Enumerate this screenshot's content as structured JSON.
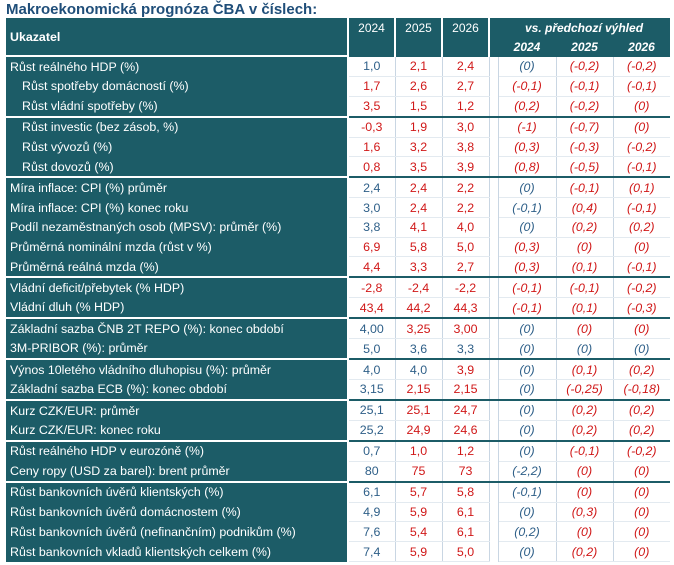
{
  "title": "Makroekonomická prognóza ČBA v číslech:",
  "header": {
    "indicator": "Ukazatel",
    "years": [
      "2024",
      "2025",
      "2026"
    ],
    "vs_label": "vs. předchozí výhled",
    "vs_years": [
      "2024",
      "2025",
      "2026"
    ]
  },
  "colors": {
    "header_bg": "#1c5c67",
    "title": "#1f4e79",
    "positive": "#2e5f88",
    "negative": "#d01818"
  },
  "rows": [
    {
      "label": "Růst reálného HDP (%)",
      "indent": false,
      "sep": true,
      "values": [
        "1,0",
        "2,1",
        "2,4"
      ],
      "vc": [
        "b",
        "r",
        "r"
      ],
      "diffs": [
        "(0)",
        "(-0,2)",
        "(-0,2)"
      ],
      "dc": [
        "b",
        "r",
        "r"
      ]
    },
    {
      "label": "Růst spotřeby domácností (%)",
      "indent": true,
      "sep": false,
      "values": [
        "1,7",
        "2,6",
        "2,7"
      ],
      "vc": [
        "r",
        "r",
        "r"
      ],
      "diffs": [
        "(-0,1)",
        "(-0,1)",
        "(-0,1)"
      ],
      "dc": [
        "r",
        "r",
        "r"
      ]
    },
    {
      "label": "Růst vládní spotřeby (%)",
      "indent": true,
      "sep": false,
      "values": [
        "3,5",
        "1,5",
        "1,2"
      ],
      "vc": [
        "r",
        "r",
        "r"
      ],
      "diffs": [
        "(0,2)",
        "(-0,2)",
        "(0)"
      ],
      "dc": [
        "r",
        "r",
        "r"
      ]
    },
    {
      "label": "Růst investic (bez zásob, %)",
      "indent": true,
      "sep": true,
      "values": [
        "-0,3",
        "1,9",
        "3,0"
      ],
      "vc": [
        "r",
        "r",
        "r"
      ],
      "diffs": [
        "(-1)",
        "(-0,7)",
        "(0)"
      ],
      "dc": [
        "r",
        "r",
        "r"
      ]
    },
    {
      "label": "Růst vývozů (%)",
      "indent": true,
      "sep": false,
      "values": [
        "1,6",
        "3,2",
        "3,8"
      ],
      "vc": [
        "r",
        "r",
        "r"
      ],
      "diffs": [
        "(0,3)",
        "(-0,3)",
        "(-0,2)"
      ],
      "dc": [
        "r",
        "r",
        "r"
      ]
    },
    {
      "label": "Růst dovozů (%)",
      "indent": true,
      "sep": false,
      "values": [
        "0,8",
        "3,5",
        "3,9"
      ],
      "vc": [
        "r",
        "r",
        "r"
      ],
      "diffs": [
        "(0,8)",
        "(-0,5)",
        "(-0,1)"
      ],
      "dc": [
        "r",
        "r",
        "r"
      ]
    },
    {
      "label": "Míra inflace: CPI (%) průměr",
      "indent": false,
      "sep": true,
      "values": [
        "2,4",
        "2,4",
        "2,2"
      ],
      "vc": [
        "b",
        "r",
        "r"
      ],
      "diffs": [
        "(0)",
        "(-0,1)",
        "(0,1)"
      ],
      "dc": [
        "b",
        "r",
        "r"
      ]
    },
    {
      "label": "Míra inflace: CPI (%) konec roku",
      "indent": false,
      "sep": false,
      "values": [
        "3,0",
        "2,4",
        "2,2"
      ],
      "vc": [
        "b",
        "r",
        "r"
      ],
      "diffs": [
        "(-0,1)",
        "(0,4)",
        "(-0,1)"
      ],
      "dc": [
        "b",
        "r",
        "r"
      ]
    },
    {
      "label": "Podíl nezaměstnaných osob (MPSV): průměr (%)",
      "indent": false,
      "sep": false,
      "values": [
        "3,8",
        "4,1",
        "4,0"
      ],
      "vc": [
        "b",
        "r",
        "r"
      ],
      "diffs": [
        "(0)",
        "(0,2)",
        "(0,2)"
      ],
      "dc": [
        "b",
        "r",
        "r"
      ]
    },
    {
      "label": "Průměrná nominální mzda (růst v %)",
      "indent": false,
      "sep": false,
      "values": [
        "6,9",
        "5,8",
        "5,0"
      ],
      "vc": [
        "r",
        "r",
        "r"
      ],
      "diffs": [
        "(0,3)",
        "(0)",
        "(0)"
      ],
      "dc": [
        "r",
        "r",
        "r"
      ]
    },
    {
      "label": "Průměrná reálná mzda (%)",
      "indent": false,
      "sep": false,
      "values": [
        "4,4",
        "3,3",
        "2,7"
      ],
      "vc": [
        "r",
        "r",
        "r"
      ],
      "diffs": [
        "(0,3)",
        "(0,1)",
        "(-0,1)"
      ],
      "dc": [
        "r",
        "r",
        "r"
      ]
    },
    {
      "label": "Vládní deficit/přebytek (% HDP)",
      "indent": false,
      "sep": true,
      "values": [
        "-2,8",
        "-2,4",
        "-2,2"
      ],
      "vc": [
        "r",
        "r",
        "r"
      ],
      "diffs": [
        "(-0,1)",
        "(-0,1)",
        "(-0,2)"
      ],
      "dc": [
        "r",
        "r",
        "r"
      ]
    },
    {
      "label": "Vládní dluh (% HDP)",
      "indent": false,
      "sep": false,
      "values": [
        "43,4",
        "44,2",
        "44,3"
      ],
      "vc": [
        "r",
        "r",
        "r"
      ],
      "diffs": [
        "(-0,1)",
        "(0,1)",
        "(-0,3)"
      ],
      "dc": [
        "r",
        "r",
        "r"
      ]
    },
    {
      "label": "Základní sazba ČNB 2T REPO (%): konec období",
      "indent": false,
      "sep": true,
      "values": [
        "4,00",
        "3,25",
        "3,00"
      ],
      "vc": [
        "b",
        "r",
        "r"
      ],
      "diffs": [
        "(0)",
        "(0)",
        "(0)"
      ],
      "dc": [
        "b",
        "r",
        "r"
      ]
    },
    {
      "label": "3M-PRIBOR (%): průměr",
      "indent": false,
      "sep": false,
      "values": [
        "5,0",
        "3,6",
        "3,3"
      ],
      "vc": [
        "b",
        "b",
        "b"
      ],
      "diffs": [
        "(0)",
        "(0)",
        "(0)"
      ],
      "dc": [
        "b",
        "b",
        "b"
      ]
    },
    {
      "label": "Výnos 10letého vládního dluhopisu (%): průměr",
      "indent": false,
      "sep": true,
      "values": [
        "4,0",
        "4,0",
        "3,9"
      ],
      "vc": [
        "b",
        "b",
        "r"
      ],
      "diffs": [
        "(0)",
        "(0,1)",
        "(0,2)"
      ],
      "dc": [
        "b",
        "r",
        "r"
      ]
    },
    {
      "label": "Základní sazba ECB (%): konec období",
      "indent": false,
      "sep": false,
      "values": [
        "3,15",
        "2,15",
        "2,15"
      ],
      "vc": [
        "b",
        "r",
        "r"
      ],
      "diffs": [
        "(0)",
        "(-0,25)",
        "(-0,18)"
      ],
      "dc": [
        "b",
        "r",
        "r"
      ]
    },
    {
      "label": "Kurz CZK/EUR: průměr",
      "indent": false,
      "sep": true,
      "values": [
        "25,1",
        "25,1",
        "24,7"
      ],
      "vc": [
        "b",
        "r",
        "r"
      ],
      "diffs": [
        "(0)",
        "(0,2)",
        "(0,2)"
      ],
      "dc": [
        "b",
        "r",
        "r"
      ]
    },
    {
      "label": "Kurz CZK/EUR: konec roku",
      "indent": false,
      "sep": false,
      "values": [
        "25,2",
        "24,9",
        "24,6"
      ],
      "vc": [
        "b",
        "r",
        "r"
      ],
      "diffs": [
        "(0)",
        "(0,2)",
        "(0,2)"
      ],
      "dc": [
        "b",
        "r",
        "r"
      ]
    },
    {
      "label": "Růst reálného HDP v eurozóně (%)",
      "indent": false,
      "sep": true,
      "values": [
        "0,7",
        "1,0",
        "1,2"
      ],
      "vc": [
        "b",
        "r",
        "r"
      ],
      "diffs": [
        "(0)",
        "(-0,1)",
        "(-0,2)"
      ],
      "dc": [
        "b",
        "r",
        "r"
      ]
    },
    {
      "label": "Ceny ropy (USD za barel): brent průměr",
      "indent": false,
      "sep": false,
      "values": [
        "80",
        "75",
        "73"
      ],
      "vc": [
        "b",
        "r",
        "r"
      ],
      "diffs": [
        "(-2,2)",
        "(0)",
        "(0)"
      ],
      "dc": [
        "b",
        "r",
        "r"
      ]
    },
    {
      "label": "Růst bankovních úvěrů klientských (%)",
      "indent": false,
      "sep": true,
      "values": [
        "6,1",
        "5,7",
        "5,8"
      ],
      "vc": [
        "b",
        "r",
        "r"
      ],
      "diffs": [
        "(-0,1)",
        "(0)",
        "(0)"
      ],
      "dc": [
        "b",
        "r",
        "r"
      ]
    },
    {
      "label": "Růst bankovních úvěrů domácnostem (%)",
      "indent": false,
      "sep": false,
      "values": [
        "4,9",
        "5,9",
        "6,1"
      ],
      "vc": [
        "b",
        "r",
        "r"
      ],
      "diffs": [
        "(0)",
        "(0,3)",
        "(0)"
      ],
      "dc": [
        "b",
        "r",
        "r"
      ]
    },
    {
      "label": "Růst bankovních úvěrů (nefinančním) podnikům (%)",
      "indent": false,
      "sep": false,
      "values": [
        "7,6",
        "5,4",
        "6,1"
      ],
      "vc": [
        "b",
        "r",
        "r"
      ],
      "diffs": [
        "(0,2)",
        "(0)",
        "(0)"
      ],
      "dc": [
        "b",
        "r",
        "r"
      ]
    },
    {
      "label": "Růst bankovních vkladů klientských celkem (%)",
      "indent": false,
      "sep": false,
      "values": [
        "7,4",
        "5,9",
        "5,0"
      ],
      "vc": [
        "b",
        "r",
        "r"
      ],
      "diffs": [
        "(0)",
        "(0,2)",
        "(0)"
      ],
      "dc": [
        "b",
        "r",
        "r"
      ]
    }
  ]
}
